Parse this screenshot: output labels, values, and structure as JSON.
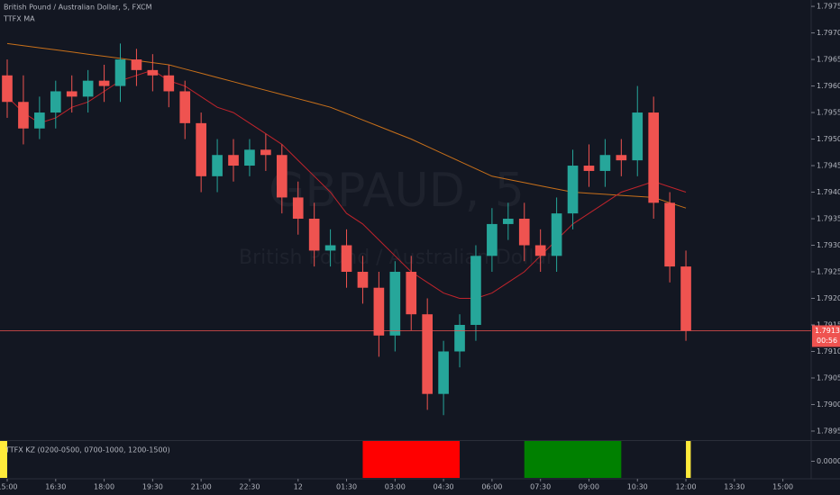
{
  "chart_data": {
    "type": "candlestick",
    "title": "British Pound / Australian Dollar, 5, FXCM",
    "ma_label": "TTFX MA",
    "watermark": "GBPAUD, 5",
    "watermark_subtitle": "British Pound / Australian Dollar",
    "up_color": "#26a69a",
    "down_color": "#ef5350",
    "open": [
      1.7962,
      1.7957,
      1.7952,
      1.7955,
      1.7959,
      1.7958,
      1.7961,
      1.796,
      1.7965,
      1.7963,
      1.7962,
      1.7959,
      1.7953,
      1.7943,
      1.7947,
      1.7945,
      1.7948,
      1.7947,
      1.7939,
      1.7935,
      1.7929,
      1.793,
      1.7925,
      1.7922,
      1.7913,
      1.7925,
      1.7917,
      1.7902,
      1.791,
      1.7915,
      1.7928,
      1.7934,
      1.7935,
      1.793,
      1.7928,
      1.7936,
      1.7945,
      1.7944,
      1.7947,
      1.7946,
      1.7955,
      1.7938,
      1.7926
    ],
    "high": [
      1.7965,
      1.7962,
      1.7958,
      1.7961,
      1.7962,
      1.7963,
      1.7964,
      1.7968,
      1.7967,
      1.7966,
      1.7964,
      1.7961,
      1.7955,
      1.795,
      1.795,
      1.795,
      1.7951,
      1.7949,
      1.7942,
      1.7938,
      1.7933,
      1.7933,
      1.7928,
      1.7925,
      1.7927,
      1.7928,
      1.792,
      1.7912,
      1.7917,
      1.793,
      1.7937,
      1.7938,
      1.7938,
      1.7933,
      1.7939,
      1.7948,
      1.7949,
      1.795,
      1.795,
      1.796,
      1.7958,
      1.794,
      1.7929
    ],
    "low": [
      1.7954,
      1.7949,
      1.795,
      1.7952,
      1.7955,
      1.7955,
      1.7957,
      1.7957,
      1.796,
      1.7959,
      1.7956,
      1.795,
      1.794,
      1.794,
      1.7942,
      1.7943,
      1.7944,
      1.7936,
      1.7932,
      1.7926,
      1.7926,
      1.7922,
      1.7919,
      1.7909,
      1.791,
      1.7914,
      1.7899,
      1.7898,
      1.7907,
      1.7912,
      1.7925,
      1.7931,
      1.7927,
      1.7925,
      1.7925,
      1.7933,
      1.7941,
      1.7941,
      1.7943,
      1.7943,
      1.7935,
      1.7923,
      1.7912
    ],
    "close": [
      1.7957,
      1.7952,
      1.7955,
      1.7959,
      1.7958,
      1.7961,
      1.796,
      1.7965,
      1.7963,
      1.7962,
      1.7959,
      1.7953,
      1.7943,
      1.7947,
      1.7945,
      1.7948,
      1.7947,
      1.7939,
      1.7935,
      1.7929,
      1.793,
      1.7925,
      1.7922,
      1.7913,
      1.7925,
      1.7917,
      1.7902,
      1.791,
      1.7915,
      1.7928,
      1.7934,
      1.7935,
      1.793,
      1.7928,
      1.7936,
      1.7945,
      1.7944,
      1.7947,
      1.7946,
      1.7955,
      1.7938,
      1.7926,
      1.79139
    ],
    "ma_lines": [
      {
        "color": "#c8701a",
        "values": [
          1.7968,
          1.79676,
          1.79672,
          1.79668,
          1.79664,
          1.7966,
          1.79656,
          1.79652,
          1.79648,
          1.79644,
          1.7964,
          1.79632,
          1.79624,
          1.79616,
          1.79608,
          1.796,
          1.79592,
          1.79584,
          1.79576,
          1.79568,
          1.7956,
          1.79548,
          1.79536,
          1.79524,
          1.79512,
          1.795,
          1.79486,
          1.79472,
          1.79458,
          1.79444,
          1.7943,
          1.79424,
          1.79418,
          1.79412,
          1.79406,
          1.794,
          1.79398,
          1.79396,
          1.79394,
          1.79392,
          1.7939,
          1.7938,
          1.7937
        ]
      },
      {
        "color": "#c0242c",
        "values": [
          1.7958,
          1.7955,
          1.7953,
          1.7954,
          1.7956,
          1.7957,
          1.7959,
          1.7961,
          1.7962,
          1.7963,
          1.7961,
          1.796,
          1.7958,
          1.7956,
          1.7955,
          1.7953,
          1.7951,
          1.7949,
          1.7946,
          1.7943,
          1.794,
          1.7936,
          1.7934,
          1.7931,
          1.7928,
          1.7925,
          1.7923,
          1.7921,
          1.792,
          1.792,
          1.7921,
          1.7923,
          1.7925,
          1.7928,
          1.7931,
          1.7934,
          1.7936,
          1.7938,
          1.794,
          1.7941,
          1.7942,
          1.7941,
          1.794
        ]
      }
    ],
    "last_price": 1.79139,
    "countdown": "00:56",
    "xlim": [
      -0.446,
      49.75
    ],
    "ylim": [
      1.78933,
      1.79762
    ],
    "xticks": [
      {
        "value": 0,
        "label": "15:00"
      },
      {
        "value": 3,
        "label": "16:30"
      },
      {
        "value": 6,
        "label": "18:00"
      },
      {
        "value": 9,
        "label": "19:30"
      },
      {
        "value": 12,
        "label": "21:00"
      },
      {
        "value": 15,
        "label": "22:30"
      },
      {
        "value": 18,
        "label": "12"
      },
      {
        "value": 21,
        "label": "01:30"
      },
      {
        "value": 24,
        "label": "03:00"
      },
      {
        "value": 27,
        "label": "04:30"
      },
      {
        "value": 30,
        "label": "06:00"
      },
      {
        "value": 33,
        "label": "07:30"
      },
      {
        "value": 36,
        "label": "09:00"
      },
      {
        "value": 39,
        "label": "10:30"
      },
      {
        "value": 42,
        "label": "12:00"
      },
      {
        "value": 45,
        "label": "13:30"
      },
      {
        "value": 48,
        "label": "15:00"
      }
    ],
    "yticks": [
      {
        "value": 1.7975,
        "label": "1.79750"
      },
      {
        "value": 1.797,
        "label": "1.79700"
      },
      {
        "value": 1.7965,
        "label": "1.79650"
      },
      {
        "value": 1.796,
        "label": "1.79600"
      },
      {
        "value": 1.7955,
        "label": "1.79550"
      },
      {
        "value": 1.795,
        "label": "1.79500"
      },
      {
        "value": 1.7945,
        "label": "1.79450"
      },
      {
        "value": 1.794,
        "label": "1.79400"
      },
      {
        "value": 1.7935,
        "label": "1.79350"
      },
      {
        "value": 1.793,
        "label": "1.79300"
      },
      {
        "value": 1.7925,
        "label": "1.79250"
      },
      {
        "value": 1.792,
        "label": "1.79200"
      },
      {
        "value": 1.7915,
        "label": "1.79150"
      },
      {
        "value": 1.791,
        "label": "1.79100"
      },
      {
        "value": 1.7905,
        "label": "1.79050"
      },
      {
        "value": 1.79,
        "label": "1.79000"
      },
      {
        "value": 1.7895,
        "label": "1.78950"
      }
    ],
    "indicator": {
      "label": "TTFX KZ (0200-0500, 0700-1000, 1200-1500)",
      "yticks": [
        {
          "value": 0,
          "label": "0.0000"
        }
      ],
      "zones": [
        {
          "start": -6,
          "end": 0,
          "color": "#ffeb3b"
        },
        {
          "start": 22,
          "end": 28,
          "color": "#ff0000"
        },
        {
          "start": 32,
          "end": 38,
          "color": "#008000"
        },
        {
          "start": 42,
          "end": 42.3,
          "color": "#ffeb3b"
        }
      ]
    }
  }
}
